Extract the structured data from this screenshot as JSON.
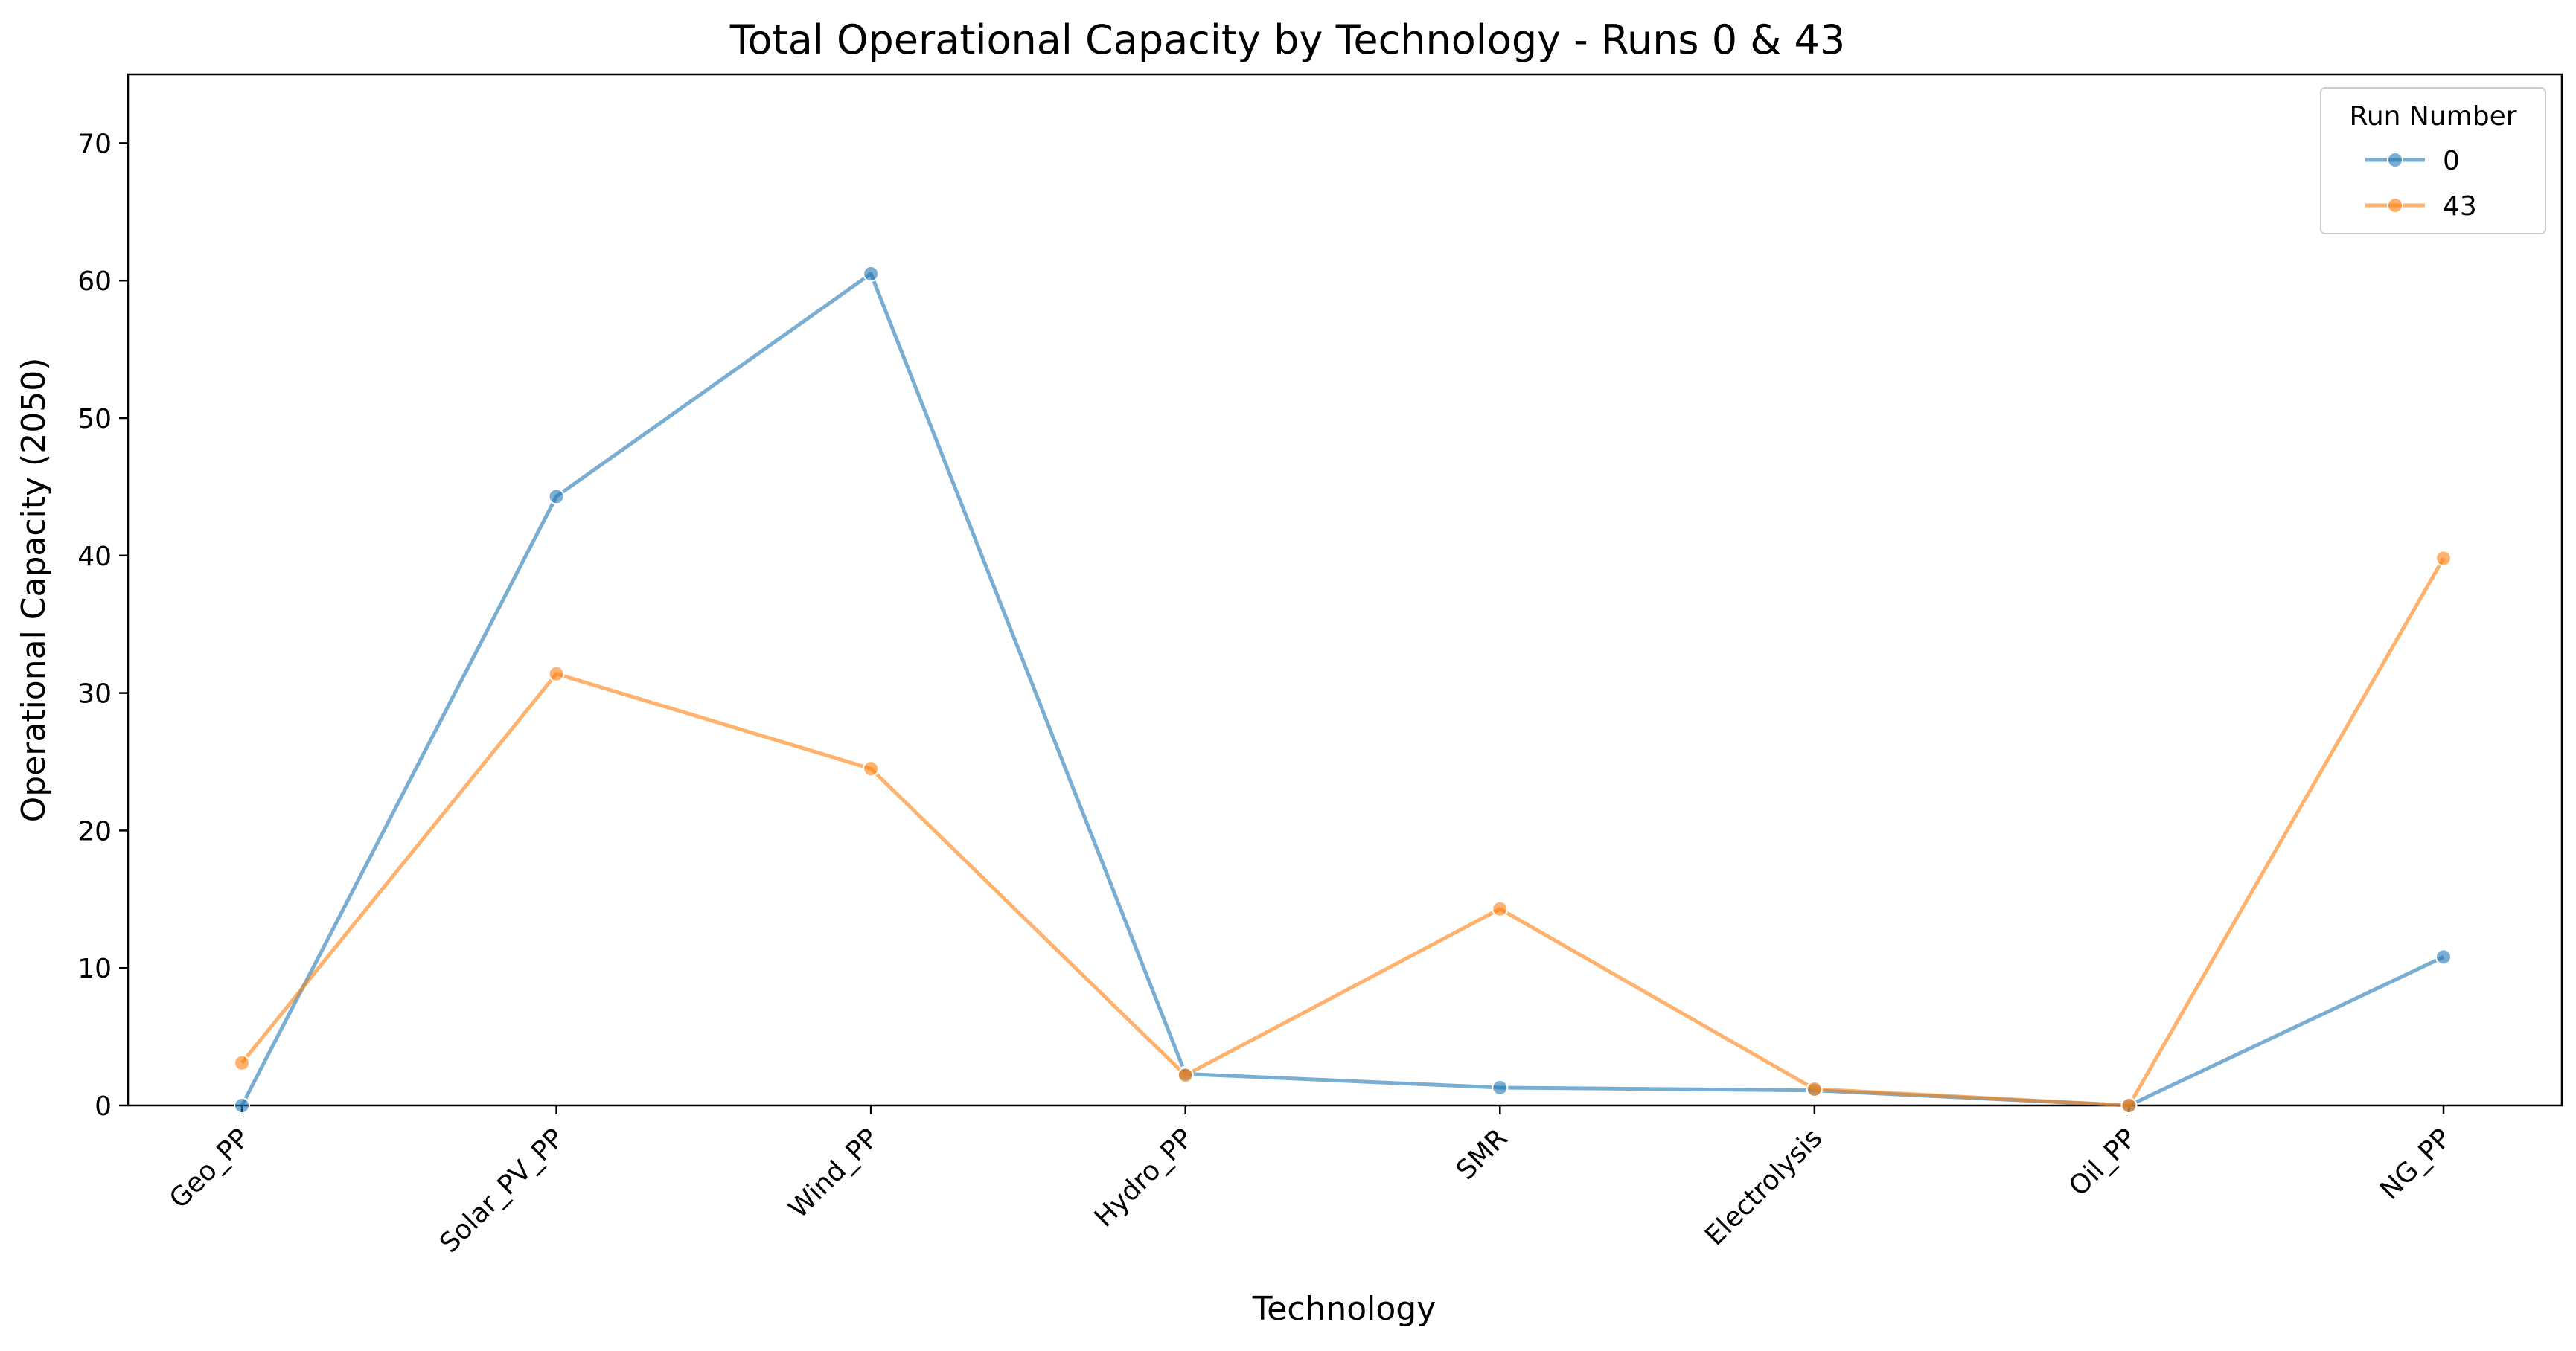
{
  "chart_data": {
    "type": "line",
    "title": "Total Operational Capacity by Technology - Runs 0 & 43",
    "xlabel": "Technology",
    "ylabel": "Operational Capacity (2050)",
    "categories": [
      "Geo_PP",
      "Solar_PV_PP",
      "Wind_PP",
      "Hydro_PP",
      "SMR",
      "Electrolysis",
      "Oil_PP",
      "NG_PP"
    ],
    "ylim": [
      0,
      75
    ],
    "yticks": [
      0,
      10,
      20,
      30,
      40,
      50,
      60,
      70
    ],
    "grid": false,
    "legend": {
      "title": "Run Number",
      "placement": "top-right"
    },
    "series": [
      {
        "name": "0",
        "color": "#1f77b4",
        "values": [
          0.0,
          44.3,
          60.5,
          2.3,
          1.3,
          1.1,
          0.0,
          10.8
        ]
      },
      {
        "name": "43",
        "color": "#ff7f0e",
        "values": [
          3.1,
          31.4,
          24.5,
          2.2,
          14.3,
          1.2,
          0.0,
          39.8
        ]
      }
    ]
  }
}
